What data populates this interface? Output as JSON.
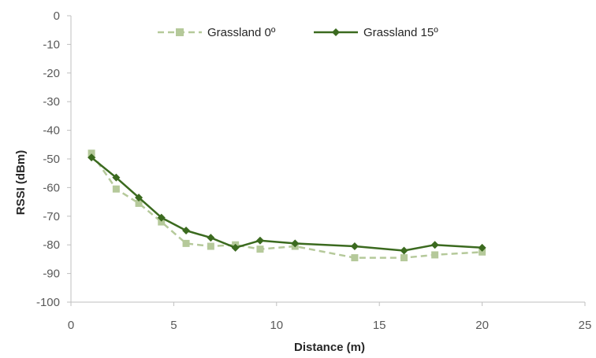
{
  "chart_data": {
    "type": "line",
    "xlabel": "Distance (m)",
    "ylabel": "RSSI (dBm)",
    "xlim": [
      0,
      25
    ],
    "ylim": [
      -100,
      0
    ],
    "x_ticks": [
      "0",
      "5",
      "10",
      "15",
      "20",
      "25"
    ],
    "y_ticks": [
      "0",
      "-10",
      "-20",
      "-30",
      "-40",
      "-50",
      "-60",
      "-70",
      "-80",
      "-90",
      "-100"
    ],
    "grid": false,
    "legend_position": "top",
    "series": [
      {
        "name": "Grassland 0º",
        "color": "#b5c99a",
        "style": "dashed",
        "marker": "square",
        "x": [
          1,
          2.2,
          3.3,
          4.4,
          5.6,
          6.8,
          8,
          9.2,
          10.9,
          13.8,
          16.2,
          17.7,
          20
        ],
        "y": [
          -48,
          -60.5,
          -65.5,
          -72,
          -79.5,
          -80.5,
          -80,
          -81.5,
          -80.5,
          -84.5,
          -84.5,
          -83.5,
          -82.5
        ]
      },
      {
        "name": "Grassland 15º",
        "color": "#3b6a1f",
        "style": "solid",
        "marker": "diamond",
        "x": [
          1,
          2.2,
          3.3,
          4.4,
          5.6,
          6.8,
          8,
          9.2,
          10.9,
          13.8,
          16.2,
          17.7,
          20
        ],
        "y": [
          -49.5,
          -56.5,
          -63.5,
          -70.5,
          -75,
          -77.5,
          -81,
          -78.5,
          -79.5,
          -80.5,
          -82,
          -80,
          -81
        ]
      }
    ]
  }
}
